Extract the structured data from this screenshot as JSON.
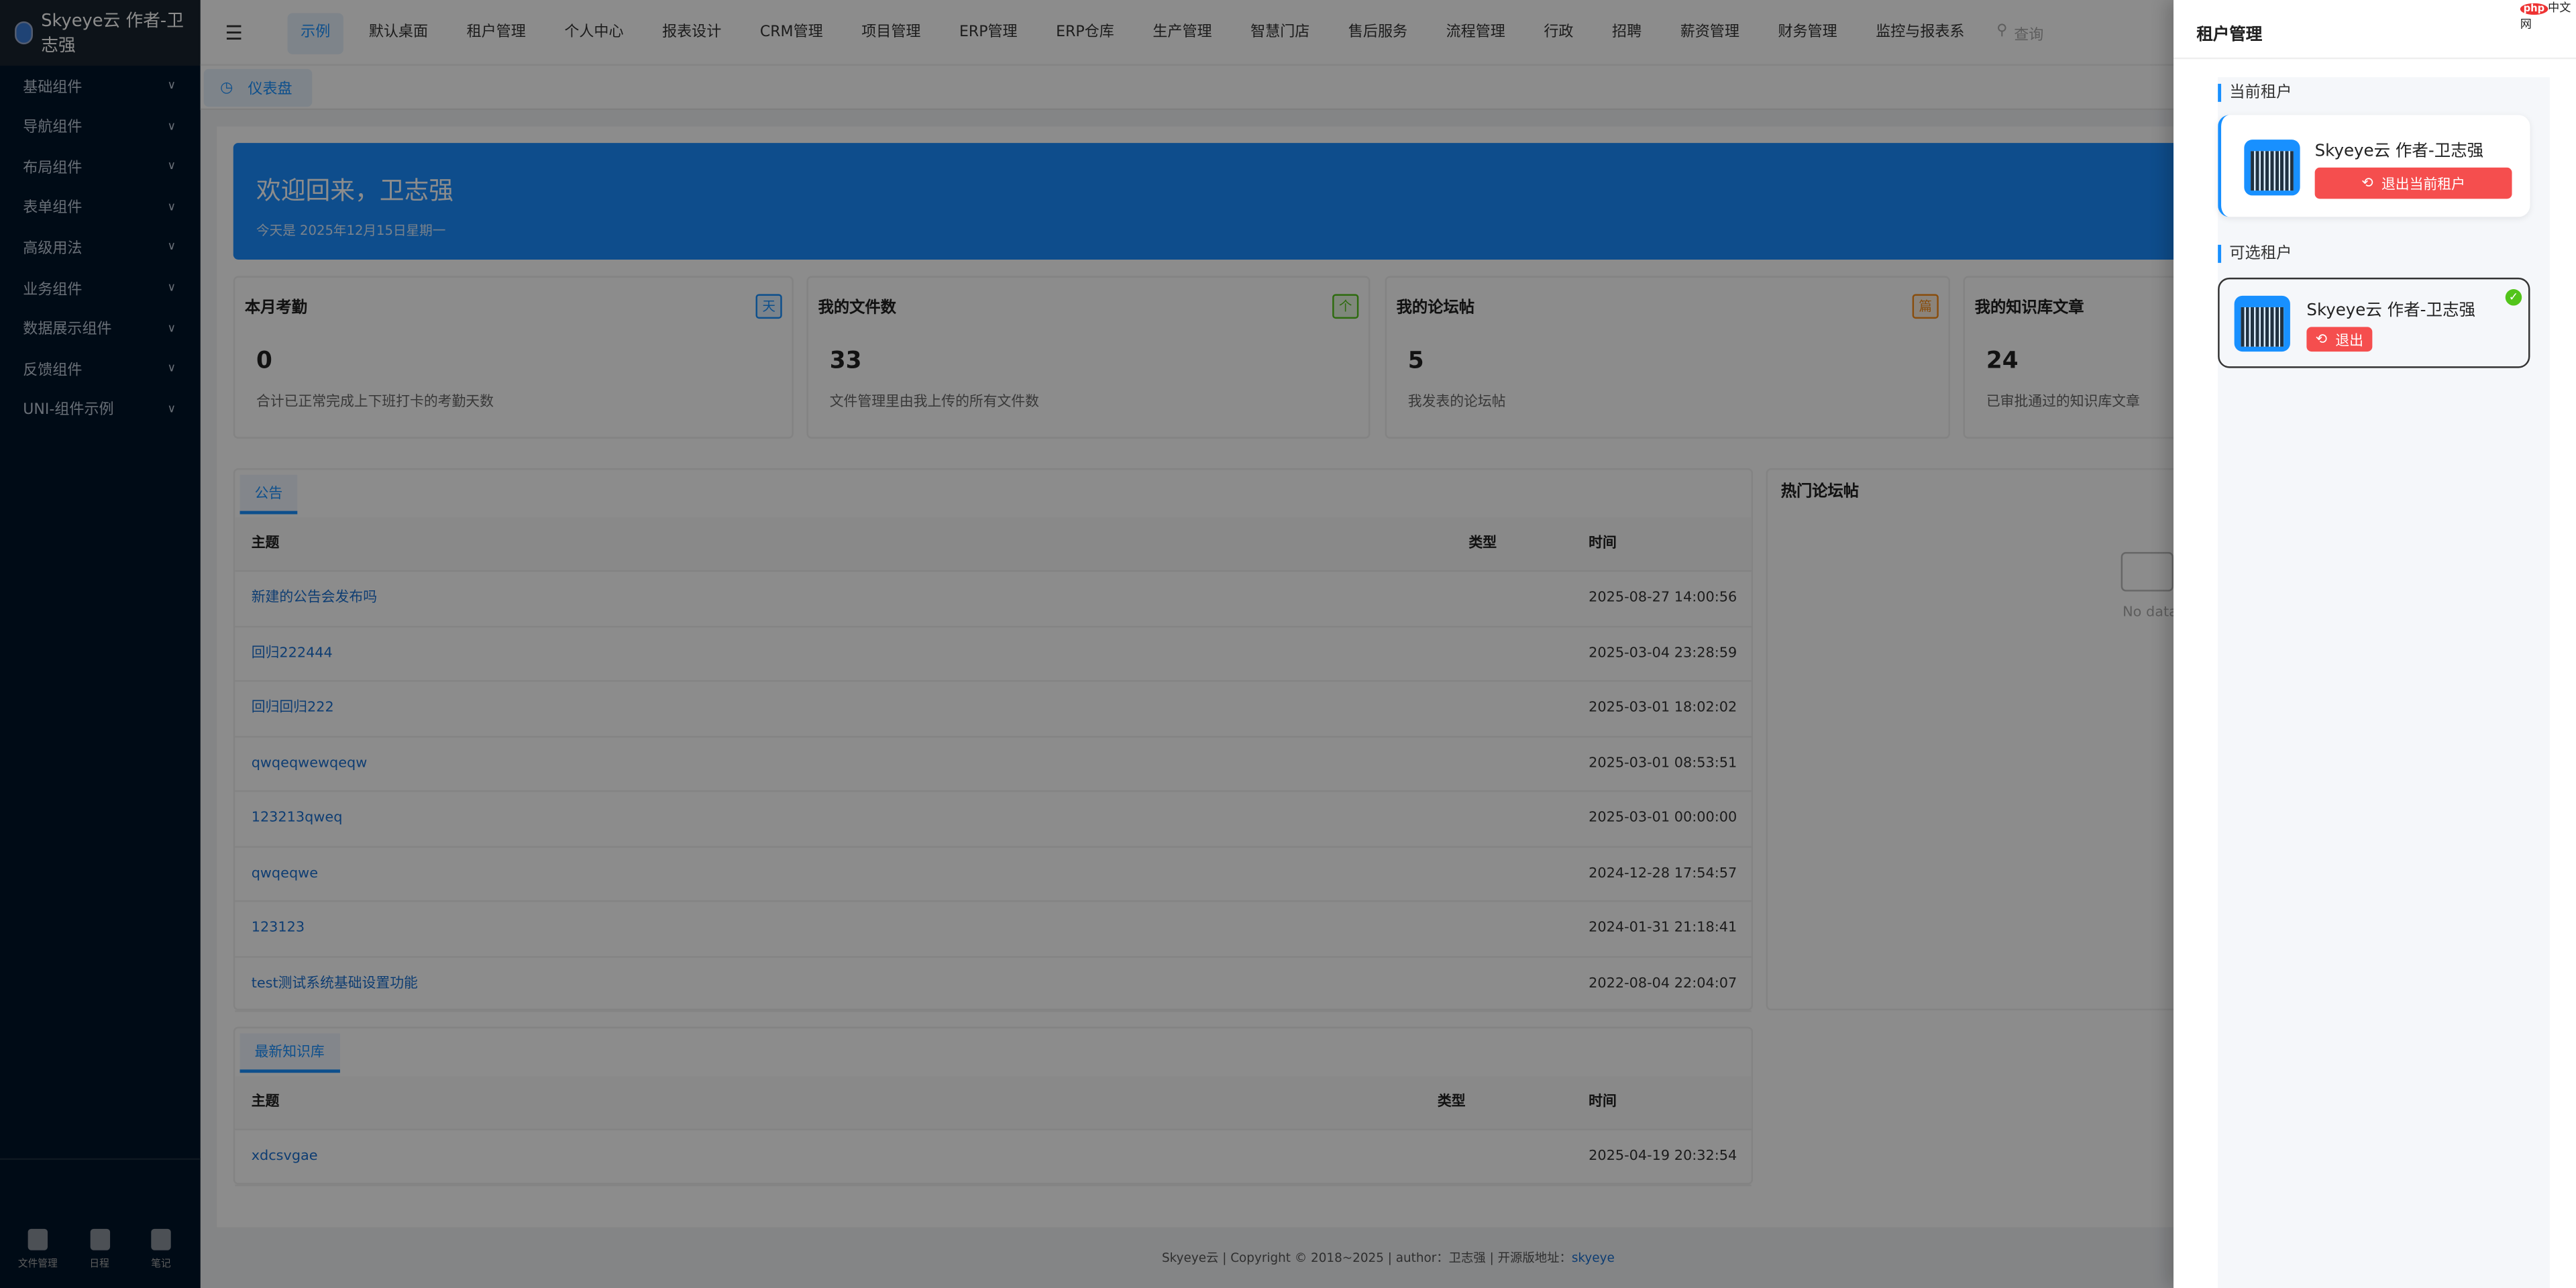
{
  "app": {
    "title": "Skyeye云 作者-卫志强"
  },
  "sidebar": {
    "items": [
      {
        "label": "基础组件"
      },
      {
        "label": "导航组件"
      },
      {
        "label": "布局组件"
      },
      {
        "label": "表单组件"
      },
      {
        "label": "高级用法"
      },
      {
        "label": "业务组件"
      },
      {
        "label": "数据展示组件"
      },
      {
        "label": "反馈组件"
      },
      {
        "label": "UNI-组件示例"
      }
    ],
    "bottom": [
      {
        "label": "文件管理",
        "icon": "folder-icon"
      },
      {
        "label": "日程",
        "icon": "calendar-icon"
      },
      {
        "label": "笔记",
        "icon": "note-icon"
      }
    ]
  },
  "header": {
    "nav": [
      {
        "label": "示例",
        "active": true
      },
      {
        "label": "默认桌面"
      },
      {
        "label": "租户管理"
      },
      {
        "label": "个人中心"
      },
      {
        "label": "报表设计"
      },
      {
        "label": "CRM管理"
      },
      {
        "label": "项目管理"
      },
      {
        "label": "ERP管理"
      },
      {
        "label": "ERP仓库"
      },
      {
        "label": "生产管理"
      },
      {
        "label": "智慧门店"
      },
      {
        "label": "售后服务"
      },
      {
        "label": "流程管理"
      },
      {
        "label": "行政"
      },
      {
        "label": "招聘"
      },
      {
        "label": "薪资管理"
      },
      {
        "label": "财务管理"
      },
      {
        "label": "监控与报表系"
      }
    ],
    "search_placeholder": "查询"
  },
  "tabs": {
    "active": "仪表盘"
  },
  "banner": {
    "title": "欢迎回来，卫志强",
    "subtitle": "今天是 2025年12月15日星期一"
  },
  "stats": [
    {
      "title": "本月考勤",
      "badge": "天",
      "value": "0",
      "desc": "合计已正常完成上下班打卡的考勤天数",
      "color": "#1890ff"
    },
    {
      "title": "我的文件数",
      "badge": "个",
      "value": "33",
      "desc": "文件管理里由我上传的所有文件数",
      "color": "#52c41a"
    },
    {
      "title": "我的论坛帖",
      "badge": "篇",
      "value": "5",
      "desc": "我发表的论坛帖",
      "color": "#fa8c16"
    },
    {
      "title": "我的知识库文章",
      "badge": "",
      "value": "24",
      "desc": "已审批通过的知识库文章",
      "color": "#1890ff"
    }
  ],
  "notices": {
    "tab": "公告",
    "columns": [
      "主题",
      "类型",
      "时间"
    ],
    "rows": [
      {
        "title": "新建的公告会发布吗",
        "type": "",
        "time": "2025-08-27 14:00:56"
      },
      {
        "title": "回归222444",
        "type": "",
        "time": "2025-03-04 23:28:59"
      },
      {
        "title": "回归回归222",
        "type": "",
        "time": "2025-03-01 18:02:02"
      },
      {
        "title": "qwqeqwewqeqw",
        "type": "",
        "time": "2025-03-01 08:53:51"
      },
      {
        "title": "123213qweq",
        "type": "",
        "time": "2025-03-01 00:00:00"
      },
      {
        "title": "qwqeqwe",
        "type": "",
        "time": "2024-12-28 17:54:57"
      },
      {
        "title": "123123",
        "type": "",
        "time": "2024-01-31 21:18:41"
      },
      {
        "title": "test测试系统基础设置功能",
        "type": "",
        "time": "2022-08-04 22:04:07"
      }
    ]
  },
  "hot": {
    "title": "热门论坛帖",
    "empty": "No data"
  },
  "knowledge": {
    "tab": "最新知识库",
    "columns": [
      "主题",
      "类型",
      "时间"
    ],
    "rows": [
      {
        "title": "xdcsvgae",
        "type": "",
        "time": "2025-04-19 20:32:54"
      }
    ]
  },
  "footer": {
    "text": "Skyeye云 | Copyright © 2018~2025 | author：卫志强 | 开源版地址：",
    "link": "skyeye"
  },
  "drawer": {
    "title": "租户管理",
    "current_label": "当前租户",
    "current": {
      "name": "Skyeye云 作者-卫志强",
      "button": "退出当前租户"
    },
    "optional_label": "可选租户",
    "optional": [
      {
        "name": "Skyeye云 作者-卫志强",
        "button": "退出",
        "selected": true
      }
    ]
  },
  "watermark": "php中文网"
}
